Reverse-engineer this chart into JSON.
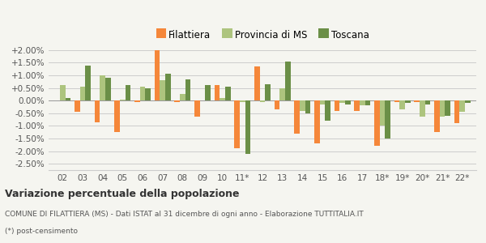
{
  "categories": [
    "02",
    "03",
    "04",
    "05",
    "06",
    "07",
    "08",
    "09",
    "10",
    "11*",
    "12",
    "13",
    "14",
    "15",
    "16",
    "17",
    "18*",
    "19*",
    "20*",
    "21*",
    "22*"
  ],
  "filattiera": [
    0.0,
    -0.0045,
    -0.0085,
    -0.0125,
    -0.0005,
    0.02,
    -0.0005,
    -0.0065,
    0.006,
    -0.019,
    0.0135,
    -0.0035,
    -0.013,
    -0.017,
    -0.004,
    -0.004,
    -0.018,
    -0.0005,
    -0.0005,
    -0.0125,
    -0.009
  ],
  "provincia_ms": [
    0.006,
    0.0055,
    0.01,
    0.0005,
    0.0055,
    0.008,
    0.0025,
    0.0,
    0.001,
    -0.0005,
    -0.0005,
    0.005,
    -0.004,
    -0.0015,
    -0.001,
    -0.002,
    -0.01,
    -0.0035,
    -0.0065,
    -0.0065,
    -0.0045
  ],
  "toscana": [
    0.001,
    0.014,
    0.009,
    0.006,
    0.005,
    0.0105,
    0.0085,
    0.006,
    0.0055,
    -0.021,
    0.0065,
    0.0155,
    -0.005,
    -0.008,
    -0.0015,
    -0.002,
    -0.015,
    -0.001,
    -0.0015,
    -0.006,
    -0.001
  ],
  "color_filattiera": "#f5873a",
  "color_provincia": "#adc47e",
  "color_toscana": "#6b8f47",
  "title_bold": "Variazione percentuale della popolazione",
  "subtitle": "COMUNE DI FILATTIERA (MS) - Dati ISTAT al 31 dicembre di ogni anno - Elaborazione TUTTITALIA.IT",
  "footnote": "(*) post-censimento",
  "ylim": [
    -0.0275,
    0.0225
  ],
  "yticks": [
    -0.025,
    -0.02,
    -0.015,
    -0.01,
    -0.005,
    0.0,
    0.005,
    0.01,
    0.015,
    0.02
  ],
  "ytick_labels": [
    "-2.50%",
    "-2.00%",
    "-1.50%",
    "-1.00%",
    "-0.50%",
    "0.00%",
    "+0.50%",
    "+1.00%",
    "+1.50%",
    "+2.00%"
  ],
  "bg_color": "#f5f5f0",
  "legend_labels": [
    "Filattiera",
    "Provincia di MS",
    "Toscana"
  ]
}
